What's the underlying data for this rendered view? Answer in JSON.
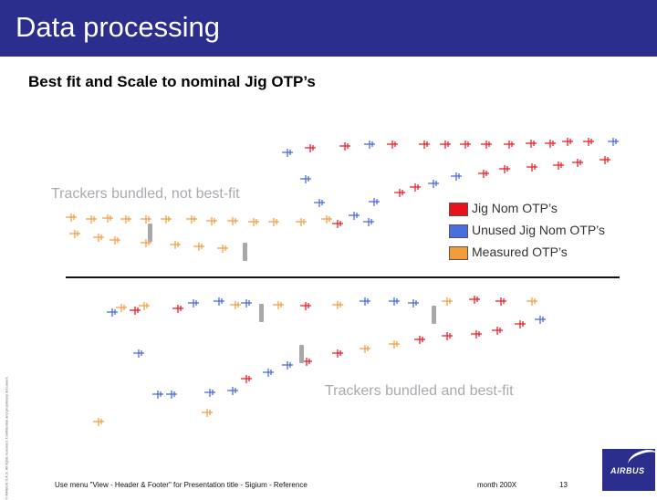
{
  "header": {
    "title": "Data processing"
  },
  "subtitle": "Best fit and Scale to nominal Jig OTP’s",
  "labels": {
    "not_best_fit": "Trackers bundled, not best-fit",
    "best_fit": "Trackers bundled and best-fit"
  },
  "legend": {
    "items": [
      {
        "label": "Jig Nom OTP’s",
        "color": "#e8121b"
      },
      {
        "label": "Unused Jig Nom OTP’s",
        "color": "#4a6ee0"
      },
      {
        "label": "Measured OTP’s",
        "color": "#f39a3a"
      }
    ]
  },
  "side_note": "© AIRBUS S.A.S. All rights reserved. Confidential and proprietary document.",
  "footer": {
    "note": "Use menu \"View - Header & Footer\" for Presentation title - Sigium - Reference",
    "date": "month 200X",
    "page": "13"
  },
  "logo": {
    "text": "AIRBUS"
  }
}
